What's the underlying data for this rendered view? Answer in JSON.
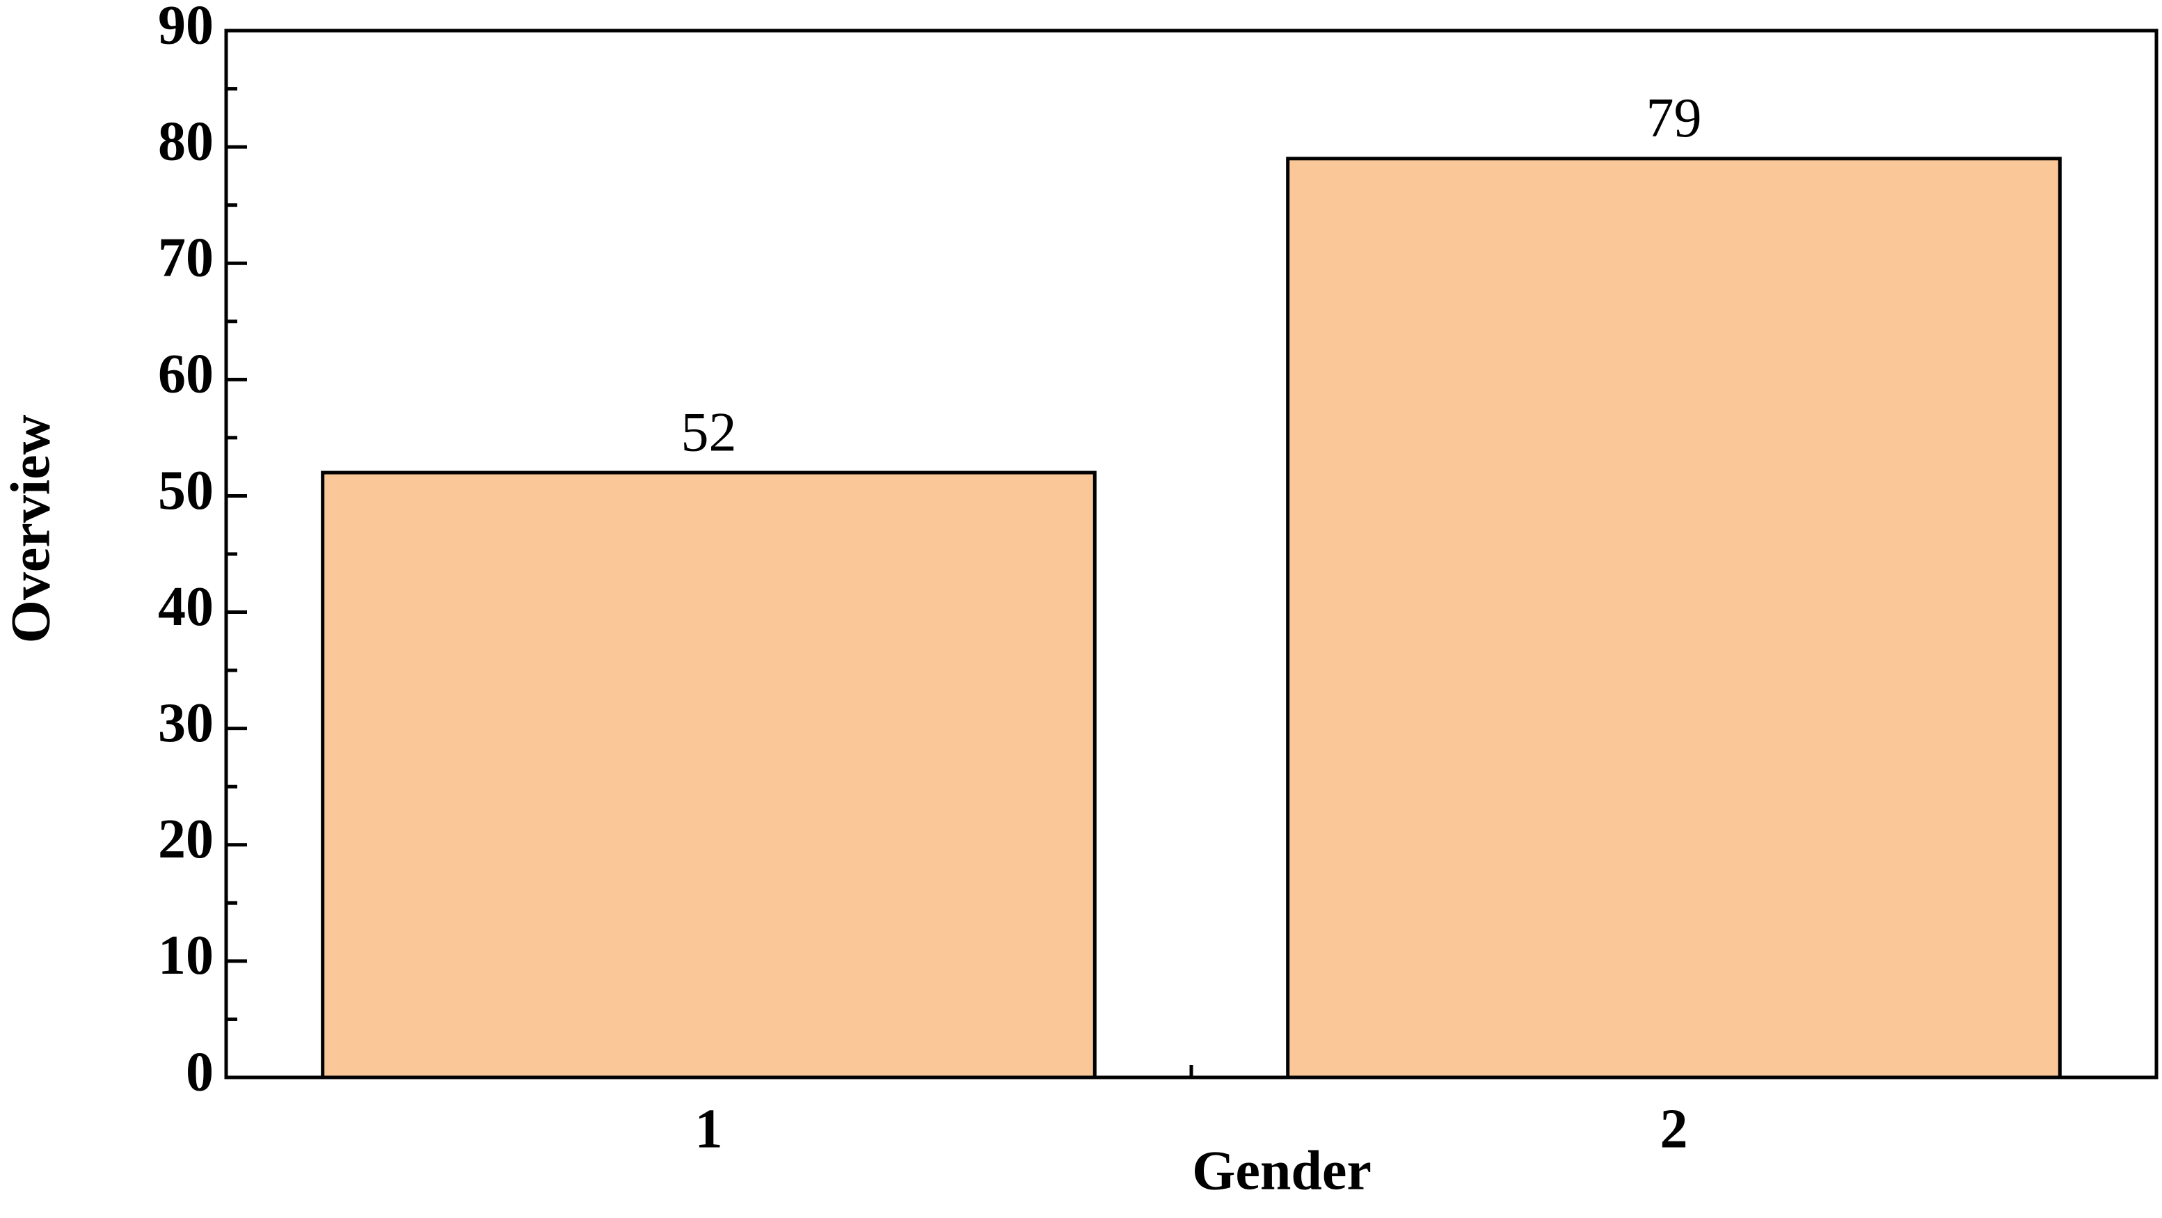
{
  "chart_data": {
    "type": "bar",
    "categories": [
      "1",
      "2"
    ],
    "values": [
      52,
      79
    ],
    "value_labels": [
      "52",
      "79"
    ],
    "color": "#fac799",
    "ylim": [
      0,
      90
    ],
    "yticks": [
      0,
      10,
      20,
      30,
      40,
      50,
      60,
      70,
      80,
      90
    ],
    "x_label": "Gender",
    "y_label": "Overview",
    "grid": false
  }
}
